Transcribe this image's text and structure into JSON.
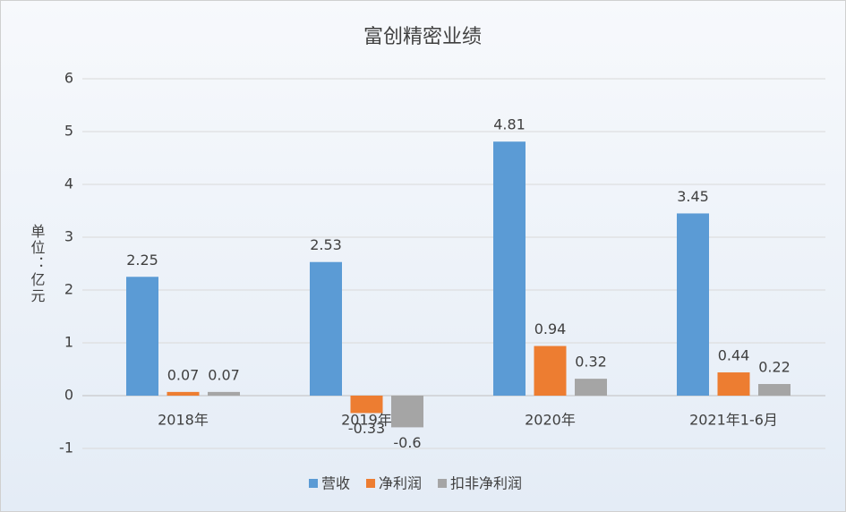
{
  "chart_data": {
    "type": "bar",
    "title": "富创精密业绩",
    "y_label": "单位：亿元",
    "categories": [
      "2018年",
      "2019年",
      "2020年",
      "2021年1-6月"
    ],
    "series": [
      {
        "name": "营收",
        "color": "#5b9bd5",
        "values": [
          2.25,
          2.53,
          4.81,
          3.45
        ]
      },
      {
        "name": "净利润",
        "color": "#ed7d31",
        "values": [
          0.07,
          -0.33,
          0.94,
          0.44
        ]
      },
      {
        "name": "扣非净利润",
        "color": "#a5a5a5",
        "values": [
          0.07,
          -0.6,
          0.32,
          0.22
        ]
      }
    ],
    "ylim": [
      -1,
      6
    ],
    "yticks": [
      -1,
      0,
      1,
      2,
      3,
      4,
      5,
      6
    ],
    "grid": true,
    "legend": "bottom"
  }
}
